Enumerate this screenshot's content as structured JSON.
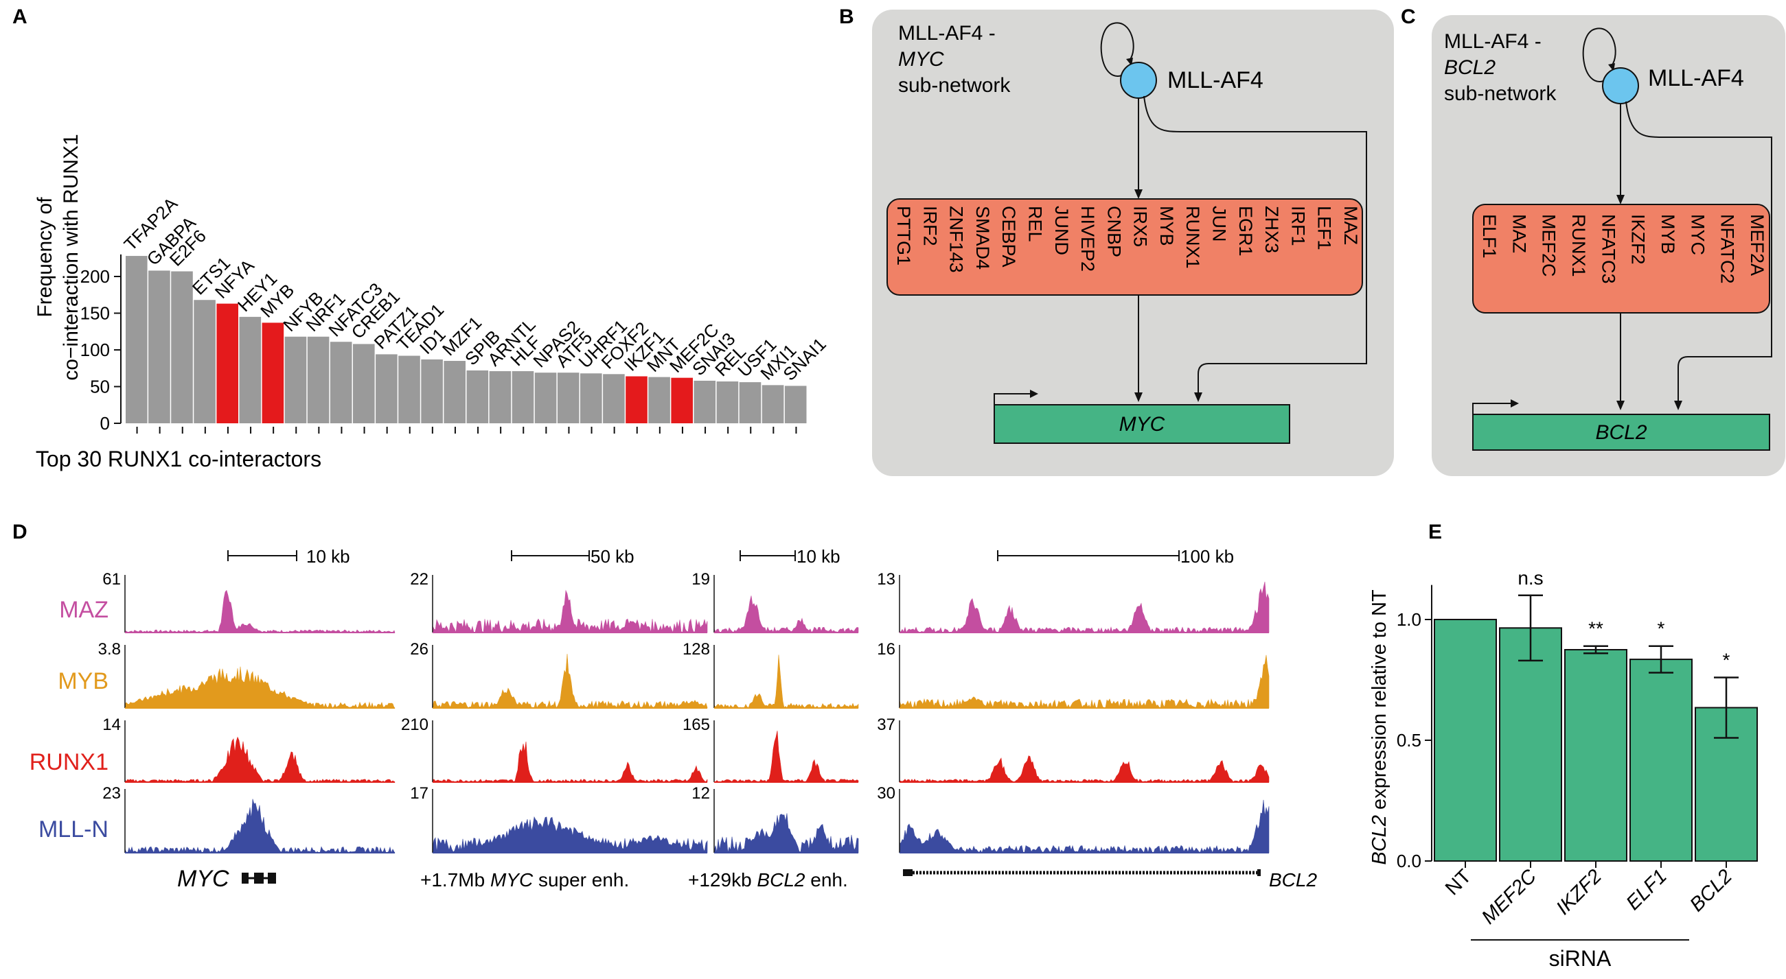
{
  "panel_labels": {
    "A": "A",
    "B": "B",
    "C": "C",
    "D": "D",
    "E": "E"
  },
  "colors": {
    "gray_bar": "#9a9a9a",
    "red_bar": "#e41a1c",
    "node_blue": "#6cc5ee",
    "box_orange": "#f08166",
    "gene_green": "#45b485",
    "panel_bg": "#d8d8d6",
    "maz": "#c44ea0",
    "myb": "#e29a1d",
    "runx1": "#e0201b",
    "mlln": "#3b4ba0"
  },
  "chart_data": [
    {
      "type": "bar",
      "title": "",
      "xlabel": "Top 30 RUNX1 co-interactors",
      "ylabel": [
        "Frequency of",
        "co−interaction with RUNX1"
      ],
      "ylim": [
        0,
        230
      ],
      "yticks": [
        0,
        50,
        100,
        150,
        200
      ],
      "categories": [
        "TFAP2A",
        "GABPA",
        "E2F6",
        "ETS1",
        "NFYA",
        "HEY1",
        "MYB",
        "NFYB",
        "NRF1",
        "NFATC3",
        "CREB1",
        "PATZ1",
        "TEAD1",
        "ID1",
        "MZF1",
        "SPIB",
        "ARNTL",
        "HLF",
        "NPAS2",
        "ATF5",
        "UHRF1",
        "FOXF2",
        "IKZF1",
        "MNT",
        "MEF2C",
        "SNAI3",
        "REL",
        "USF1",
        "MXI1",
        "SNAI1"
      ],
      "values": [
        228,
        208,
        207,
        168,
        163,
        145,
        137,
        118,
        118,
        111,
        108,
        94,
        92,
        87,
        85,
        72,
        71,
        71,
        69,
        69,
        68,
        67,
        64,
        63,
        62,
        58,
        57,
        56,
        52,
        51
      ],
      "highlight": [
        false,
        false,
        false,
        false,
        true,
        false,
        true,
        false,
        false,
        false,
        false,
        false,
        false,
        false,
        false,
        false,
        false,
        false,
        false,
        false,
        false,
        false,
        true,
        false,
        true,
        false,
        false,
        false,
        false,
        false
      ]
    },
    {
      "type": "bar",
      "title": "",
      "ylabel": "expression relative to NT",
      "ylabel_gene": "BCL2",
      "group_label": "siRNA",
      "ylim": [
        0,
        1.2
      ],
      "yticks": [
        "0.0",
        "0.5",
        "1.0"
      ],
      "categories": [
        "NT",
        "MEF2C",
        "IKZF2",
        "ELF1",
        "BCL2"
      ],
      "values": [
        1.0,
        0.965,
        0.875,
        0.835,
        0.635
      ],
      "errors": [
        0,
        0.135,
        0.015,
        0.055,
        0.125
      ],
      "significance": [
        "",
        "n.s",
        "**",
        "*",
        "*"
      ]
    }
  ],
  "panel_b": {
    "title_line1": "MLL-AF4 -",
    "title_gene": "MYC",
    "title_line3": "sub-network",
    "node": "MLL-AF4",
    "factors": [
      "PTTG1",
      "IRF2",
      "ZNF143",
      "SMAD4",
      "CEBPA",
      "REL",
      "JUND",
      "HIVEP2",
      "CNBP",
      "IRX5",
      "MYB",
      "RUNX1",
      "JUN",
      "EGR1",
      "ZHX3",
      "IRF1",
      "LEF1",
      "MAZ"
    ],
    "target": "MYC"
  },
  "panel_c": {
    "title_line1": "MLL-AF4 -",
    "title_gene": "BCL2",
    "title_line3": "sub-network",
    "node": "MLL-AF4",
    "factors": [
      "ELF1",
      "MAZ",
      "MEF2C",
      "RUNX1",
      "NFATC3",
      "IKZF2",
      "MYB",
      "MYC",
      "NFATC2",
      "MEF2A"
    ],
    "target": "BCL2"
  },
  "panel_d": {
    "tracks": [
      "MAZ",
      "MYB",
      "RUNX1",
      "MLL-N"
    ],
    "scales": [
      "10 kb",
      "50 kb",
      "10 kb",
      "100 kb"
    ],
    "maxima": [
      [
        "61",
        "3.8",
        "14",
        "23"
      ],
      [
        "22",
        "26",
        "210",
        "17"
      ],
      [
        "19",
        "128",
        "165",
        "12"
      ],
      [
        "13",
        "16",
        "37",
        "30"
      ]
    ],
    "loci": [
      {
        "pre": "",
        "gene": "MYC",
        "post": ""
      },
      {
        "pre": "+1.7Mb ",
        "gene": "MYC",
        "post": " super enh."
      },
      {
        "pre": "+129kb ",
        "gene": "BCL2",
        "post": " enh."
      },
      {
        "pre": "",
        "gene": "BCL2",
        "post": ""
      }
    ]
  }
}
